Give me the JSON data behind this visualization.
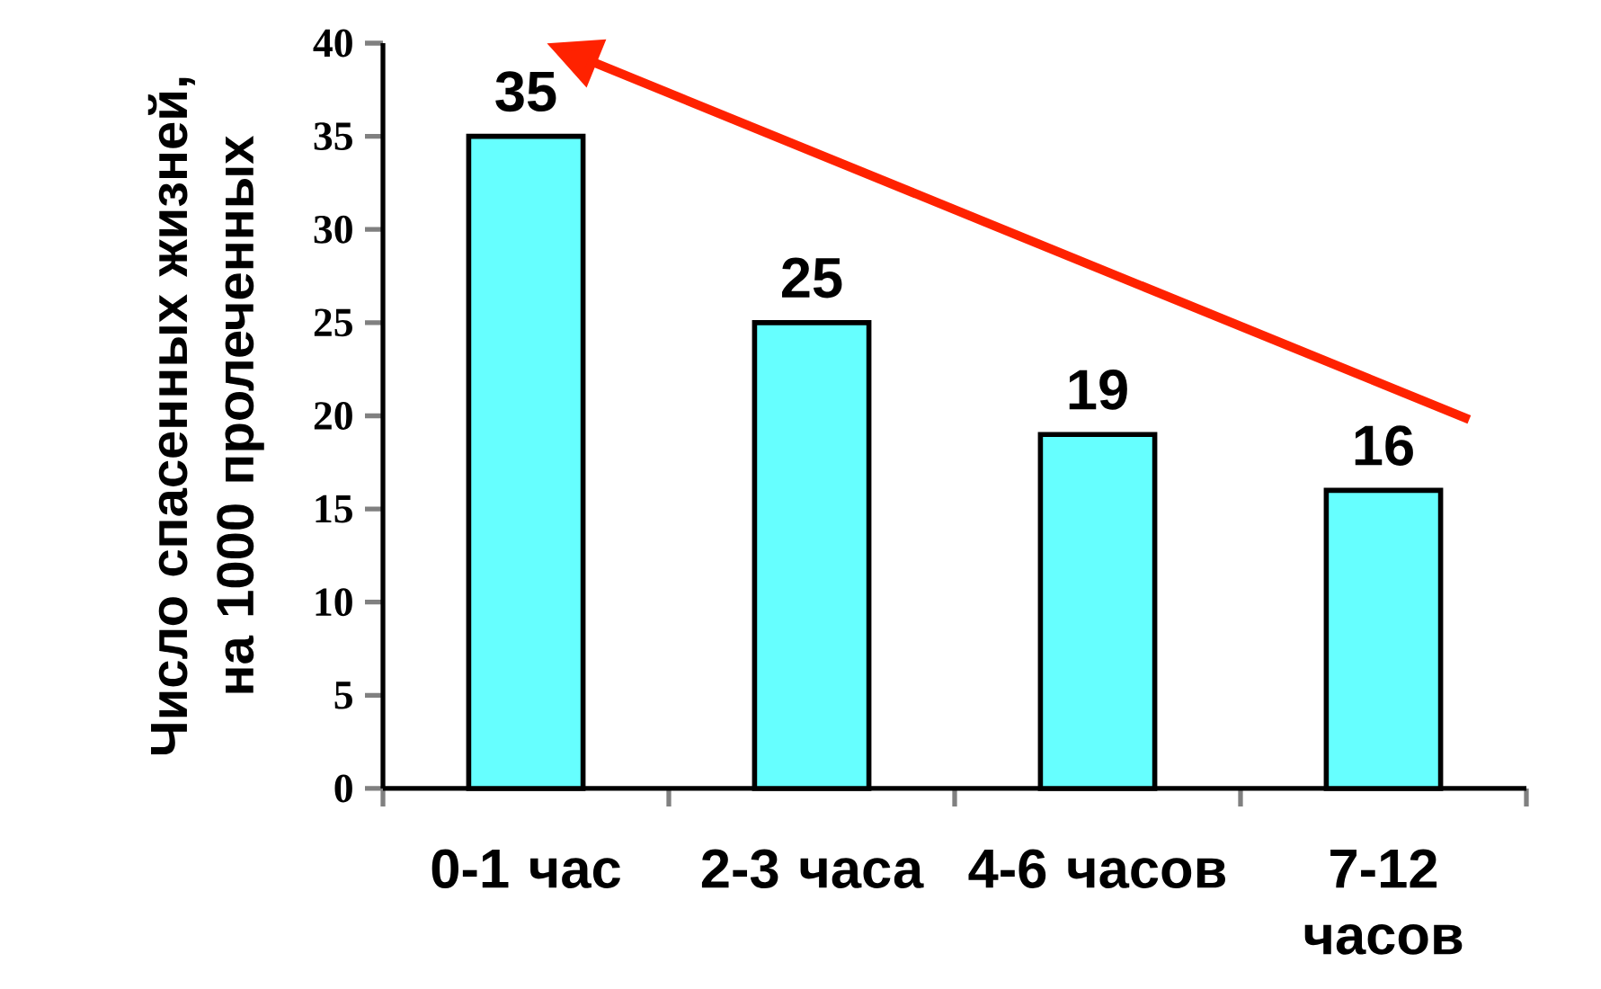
{
  "chart_data": {
    "type": "bar",
    "ylabel": "Число спасенных жизней, на 1000 пролеченных",
    "categories": [
      "0-1 час",
      "2-3 часа",
      "4-6 часов",
      "7-12 часов"
    ],
    "values": [
      35,
      25,
      19,
      16
    ],
    "color": "#66ffff",
    "ylim": [
      0,
      40
    ],
    "yticks": [
      0,
      5,
      10,
      15,
      20,
      25,
      30,
      35,
      40
    ],
    "data_labels": true,
    "grid": false
  }
}
